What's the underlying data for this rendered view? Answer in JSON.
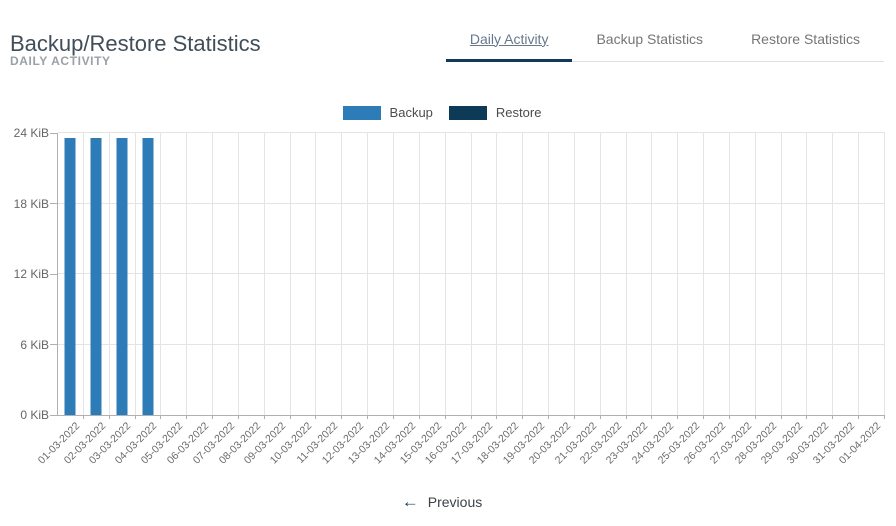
{
  "page": {
    "title": "Backup/Restore Statistics",
    "subtitle": "DAILY ACTIVITY"
  },
  "tabs": [
    {
      "label": "Daily Activity",
      "active": true
    },
    {
      "label": "Backup Statistics",
      "active": false
    },
    {
      "label": "Restore Statistics",
      "active": false
    }
  ],
  "legend": [
    {
      "label": "Backup",
      "color": "#2d7cb8"
    },
    {
      "label": "Restore",
      "color": "#0c3a57"
    }
  ],
  "chart_data": {
    "type": "bar",
    "title": "",
    "categories": [
      "01-03-2022",
      "02-03-2022",
      "03-03-2022",
      "04-03-2022",
      "05-03-2022",
      "06-03-2022",
      "07-03-2022",
      "08-03-2022",
      "09-03-2022",
      "10-03-2022",
      "11-03-2022",
      "12-03-2022",
      "13-03-2022",
      "14-03-2022",
      "15-03-2022",
      "16-03-2022",
      "17-03-2022",
      "18-03-2022",
      "19-03-2022",
      "20-03-2022",
      "21-03-2022",
      "22-03-2022",
      "23-03-2022",
      "24-03-2022",
      "25-03-2022",
      "26-03-2022",
      "27-03-2022",
      "28-03-2022",
      "29-03-2022",
      "30-03-2022",
      "31-03-2022",
      "01-04-2022"
    ],
    "series": [
      {
        "name": "Backup",
        "color": "#2d7cb8",
        "values": [
          23.6,
          23.6,
          23.6,
          23.6,
          0,
          0,
          0,
          0,
          0,
          0,
          0,
          0,
          0,
          0,
          0,
          0,
          0,
          0,
          0,
          0,
          0,
          0,
          0,
          0,
          0,
          0,
          0,
          0,
          0,
          0,
          0,
          0
        ]
      },
      {
        "name": "Restore",
        "color": "#0c3a57",
        "values": [
          0,
          0,
          0,
          0,
          0,
          0,
          0,
          0,
          0,
          0,
          0,
          0,
          0,
          0,
          0,
          0,
          0,
          0,
          0,
          0,
          0,
          0,
          0,
          0,
          0,
          0,
          0,
          0,
          0,
          0,
          0,
          0
        ]
      }
    ],
    "ylabel": "KiB",
    "ytick_labels": [
      "0 KiB",
      "6 KiB",
      "12 KiB",
      "18 KiB",
      "24 KiB"
    ],
    "ylim": [
      0,
      24
    ],
    "grid": true,
    "legend_position": "top-center",
    "x_label_rotation": -45
  },
  "pagination": {
    "previous_label": "Previous",
    "arrow_glyph": "←"
  },
  "colors": {
    "accent_navy": "#12395c",
    "grid": "#e4e4e4",
    "axis": "#b0b0b0"
  }
}
